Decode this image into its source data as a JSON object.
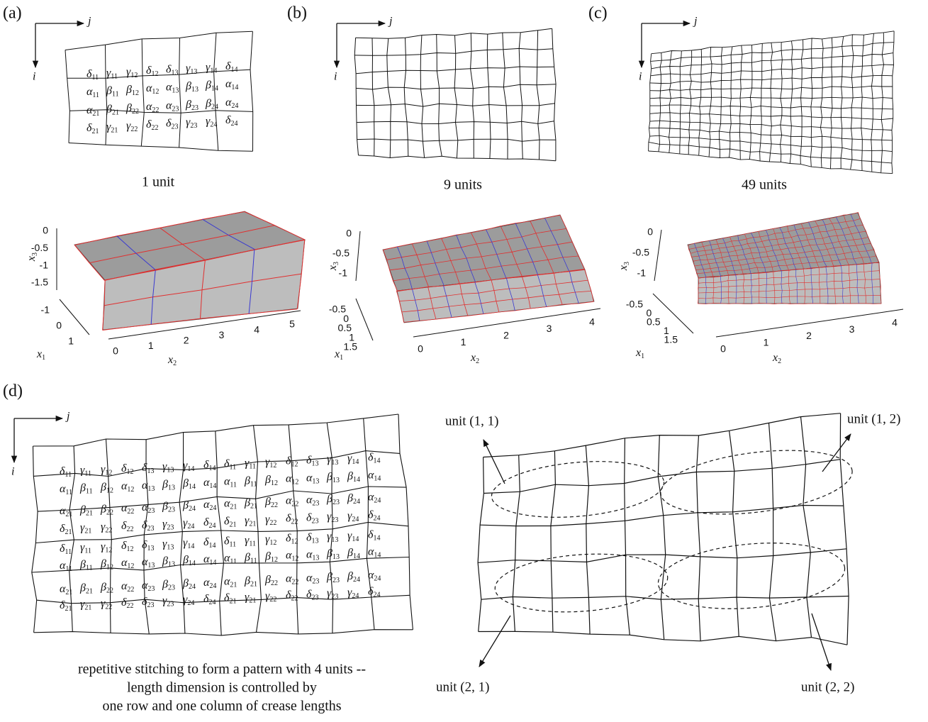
{
  "panel_a": {
    "label": "(a)",
    "arrows": {
      "j": "j",
      "i": "i"
    },
    "crease_labels": [
      [
        "δ11",
        "γ11",
        "γ12",
        "δ12",
        "δ13",
        "γ13",
        "γ14",
        "δ14"
      ],
      [
        "α11",
        "β11",
        "β12",
        "α12",
        "α13",
        "β13",
        "β14",
        "α14"
      ],
      [
        "α21",
        "β21",
        "β22",
        "α22",
        "α23",
        "β23",
        "β24",
        "α24"
      ],
      [
        "δ21",
        "γ21",
        "γ22",
        "δ22",
        "δ23",
        "γ23",
        "γ24",
        "δ24"
      ]
    ],
    "caption": "1 unit",
    "plot": {
      "x1": "x1",
      "x2": "x2",
      "x3": "x3",
      "x1ticks": [
        -1,
        0,
        1
      ],
      "x2ticks": [
        0,
        1,
        2,
        3,
        4,
        5
      ],
      "x3ticks": [
        0,
        -0.5,
        -1,
        -1.5
      ]
    }
  },
  "panel_b": {
    "label": "(b)",
    "arrows": {
      "j": "j",
      "i": "i"
    },
    "caption": "9 units",
    "plot": {
      "x1": "x1",
      "x2": "x2",
      "x3": "x3",
      "x1ticks": [
        -0.5,
        0,
        0.5,
        1,
        1.5
      ],
      "x2ticks": [
        0,
        1,
        2,
        3,
        4
      ],
      "x3ticks": [
        0,
        -0.5,
        -1
      ]
    }
  },
  "panel_c": {
    "label": "(c)",
    "arrows": {
      "j": "j",
      "i": "i"
    },
    "caption": "49 units",
    "plot": {
      "x1": "x1",
      "x2": "x2",
      "x3": "x3",
      "x1ticks": [
        -0.5,
        0,
        0.5,
        1,
        1.5
      ],
      "x2ticks": [
        0,
        1,
        2,
        3,
        4
      ],
      "x3ticks": [
        0,
        -0.5,
        -1
      ]
    }
  },
  "panel_d": {
    "label": "(d)",
    "arrows": {
      "j": "j",
      "i": "i"
    },
    "caption": [
      "repetitive stitching to form a pattern with 4 units --",
      "length dimension is controlled by",
      "one row and one column of crease lengths"
    ],
    "units": [
      "unit (1, 1)",
      "unit (1, 2)",
      "unit (2, 1)",
      "unit (2, 2)"
    ]
  }
}
